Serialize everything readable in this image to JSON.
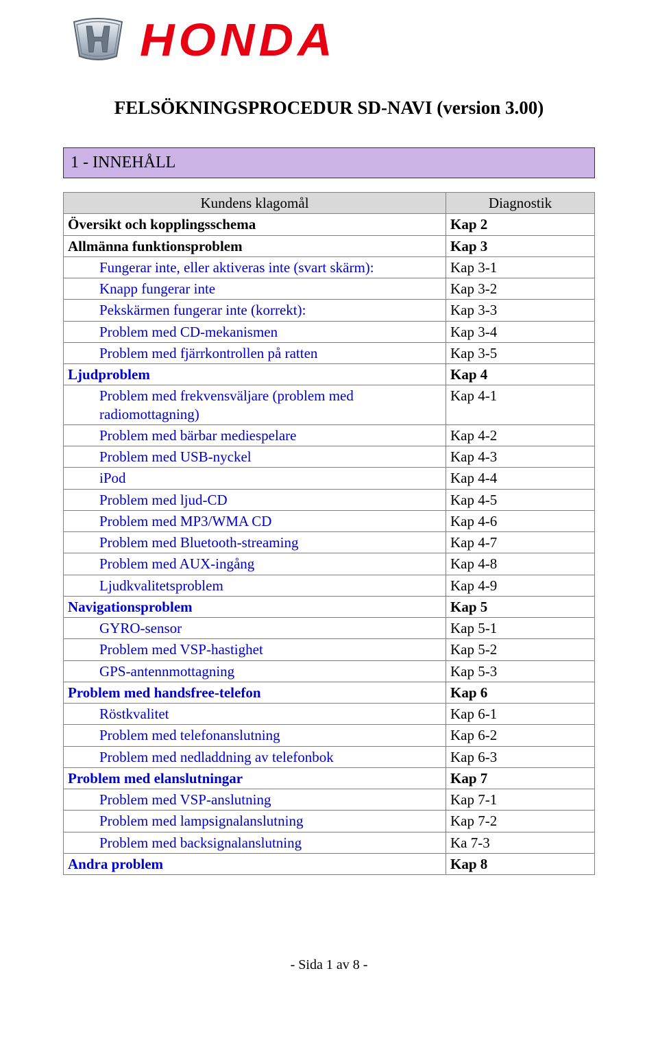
{
  "brand": {
    "wordmark": "HONDA",
    "wordmark_color": "#e60012"
  },
  "title": "FELSÖKNINGSPROCEDUR SD-NAVI (version 3.00)",
  "section_header": "1 - INNEHÅLL",
  "table": {
    "header_left": "Kundens klagomål",
    "header_right": "Diagnostik",
    "rows": [
      {
        "label": "Översikt och kopplingsschema",
        "diag": "Kap 2",
        "bold": true,
        "blue": false,
        "indent": 0
      },
      {
        "label": "Allmänna funktionsproblem",
        "diag": "Kap 3",
        "bold": true,
        "blue": false,
        "indent": 0
      },
      {
        "label": "Fungerar inte, eller aktiveras inte (svart skärm):",
        "diag": "Kap 3-1",
        "bold": false,
        "blue": true,
        "indent": 1
      },
      {
        "label": "Knapp fungerar inte",
        "diag": "Kap 3-2",
        "bold": false,
        "blue": true,
        "indent": 1
      },
      {
        "label": "Pekskärmen fungerar inte (korrekt):",
        "diag": "Kap 3-3",
        "bold": false,
        "blue": true,
        "indent": 1
      },
      {
        "label": "Problem med CD-mekanismen",
        "diag": "Kap 3-4",
        "bold": false,
        "blue": true,
        "indent": 1
      },
      {
        "label": "Problem med fjärrkontrollen på ratten",
        "diag": "Kap 3-5",
        "bold": false,
        "blue": true,
        "indent": 1
      },
      {
        "label": "Ljudproblem",
        "diag": "Kap 4",
        "bold": true,
        "blue": true,
        "indent": 0
      },
      {
        "label": "Problem med frekvensväljare (problem med radiomottagning)",
        "diag": "Kap 4-1",
        "bold": false,
        "blue": true,
        "indent": 1
      },
      {
        "label": "Problem med bärbar mediespelare",
        "diag": "Kap 4-2",
        "bold": false,
        "blue": true,
        "indent": 1
      },
      {
        "label": "Problem med USB-nyckel",
        "diag": "Kap 4-3",
        "bold": false,
        "blue": true,
        "indent": 1
      },
      {
        "label": "iPod",
        "diag": "Kap 4-4",
        "bold": false,
        "blue": true,
        "indent": 1
      },
      {
        "label": "Problem med ljud-CD",
        "diag": "Kap 4-5",
        "bold": false,
        "blue": true,
        "indent": 1
      },
      {
        "label": "Problem med MP3/WMA CD",
        "diag": "Kap 4-6",
        "bold": false,
        "blue": true,
        "indent": 1
      },
      {
        "label": "Problem med Bluetooth-streaming",
        "diag": "Kap 4-7",
        "bold": false,
        "blue": true,
        "indent": 1
      },
      {
        "label": "Problem med AUX-ingång",
        "diag": "Kap 4-8",
        "bold": false,
        "blue": true,
        "indent": 1
      },
      {
        "label": "Ljudkvalitetsproblem",
        "diag": "Kap 4-9",
        "bold": false,
        "blue": true,
        "indent": 1
      },
      {
        "label": "Navigationsproblem",
        "diag": "Kap 5",
        "bold": true,
        "blue": true,
        "indent": 0
      },
      {
        "label": "GYRO-sensor",
        "diag": "Kap 5-1",
        "bold": false,
        "blue": true,
        "indent": 1
      },
      {
        "label": "Problem med VSP-hastighet",
        "diag": "Kap 5-2",
        "bold": false,
        "blue": true,
        "indent": 1
      },
      {
        "label": "GPS-antennmottagning",
        "diag": "Kap 5-3",
        "bold": false,
        "blue": true,
        "indent": 1
      },
      {
        "label": "Problem med handsfree-telefon",
        "diag": "Kap 6",
        "bold": true,
        "blue": true,
        "indent": 0
      },
      {
        "label": "Röstkvalitet",
        "diag": "Kap 6-1",
        "bold": false,
        "blue": true,
        "indent": 1
      },
      {
        "label": "Problem med telefonanslutning",
        "diag": "Kap 6-2",
        "bold": false,
        "blue": true,
        "indent": 1
      },
      {
        "label": "Problem med nedladdning av telefonbok",
        "diag": "Kap 6-3",
        "bold": false,
        "blue": true,
        "indent": 1
      },
      {
        "label": "Problem med elanslutningar",
        "diag": "Kap 7",
        "bold": true,
        "blue": true,
        "indent": 0
      },
      {
        "label": "Problem med VSP-anslutning",
        "diag": "Kap 7-1",
        "bold": false,
        "blue": true,
        "indent": 1
      },
      {
        "label": "Problem med lampsignalanslutning",
        "diag": "Kap 7-2",
        "bold": false,
        "blue": true,
        "indent": 1
      },
      {
        "label": "Problem med backsignalanslutning",
        "diag": "Ka 7-3",
        "bold": false,
        "blue": true,
        "indent": 1
      },
      {
        "label": "Andra problem",
        "diag": "Kap 8",
        "bold": true,
        "blue": true,
        "indent": 0
      }
    ]
  },
  "footer": "- Sida 1 av 8 -",
  "colors": {
    "banner_bg": "#ccb3e6",
    "banner_border": "#333333",
    "header_bg": "#d9d9d9",
    "cell_border": "#808080",
    "link_blue": "#0000cc"
  }
}
